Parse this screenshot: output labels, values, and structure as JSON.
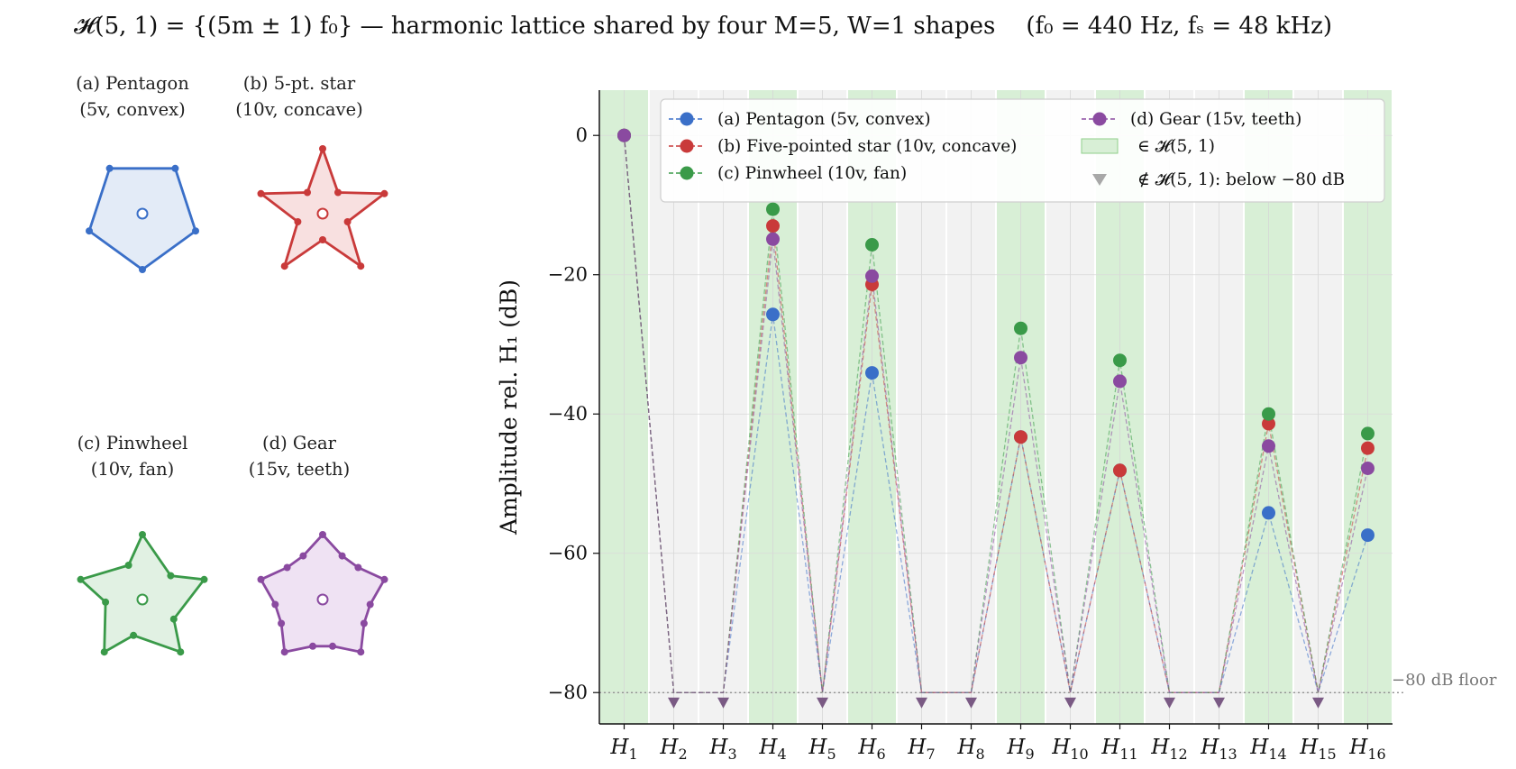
{
  "title": {
    "lhs": "𝓗(5, 1) = {(5m ± 1) f₀}",
    "mid": " — harmonic lattice shared by four M=5, W=1 shapes",
    "rhs": "(f₀ = 440 Hz,  fₛ = 48 kHz)"
  },
  "shapes": [
    {
      "label_line1": "(a) Pentagon",
      "label_line2": "(5v, convex)",
      "color": "#3a6fc8",
      "fill": "#e3ebf7",
      "kind": "pentagon"
    },
    {
      "label_line1": "(b) 5-pt. star",
      "label_line2": "(10v, concave)",
      "color": "#c93a3a",
      "fill": "#f8e0e0",
      "kind": "star"
    },
    {
      "label_line1": "(c) Pinwheel",
      "label_line2": "(10v, fan)",
      "color": "#3a9a49",
      "fill": "#e1f1e3",
      "kind": "pinwheel"
    },
    {
      "label_line1": "(d) Gear",
      "label_line2": "(15v, teeth)",
      "color": "#8a4aa0",
      "fill": "#efe2f3",
      "kind": "gear"
    }
  ],
  "chart_data": {
    "type": "scatter",
    "xlabel": "",
    "ylabel": "Amplitude rel. H₁  (dB)",
    "categories": [
      "H1",
      "H2",
      "H3",
      "H4",
      "H5",
      "H6",
      "H7",
      "H8",
      "H9",
      "H10",
      "H11",
      "H12",
      "H13",
      "H14",
      "H15",
      "H16"
    ],
    "category_subscripts": [
      "1",
      "2",
      "3",
      "4",
      "5",
      "6",
      "7",
      "8",
      "9",
      "10",
      "11",
      "12",
      "13",
      "14",
      "15",
      "16"
    ],
    "ylim": [
      -84.5,
      6.5
    ],
    "yticks": [
      0,
      -20,
      -40,
      -60,
      -80
    ],
    "ytick_labels": [
      "0",
      "−20",
      "−40",
      "−60",
      "−80"
    ],
    "floor_db": -80,
    "floor_label": "−80 dB floor",
    "in_lattice": [
      1,
      0,
      0,
      1,
      0,
      1,
      0,
      0,
      1,
      0,
      1,
      0,
      0,
      1,
      0,
      1
    ],
    "below_floor_marker_db": -81.5,
    "series": [
      {
        "name": "(a) Pentagon (5v, convex)",
        "color": "#3a6fc8",
        "values": [
          0,
          -80,
          -80,
          -25.7,
          -80,
          -34.1,
          -80,
          -80,
          -43.3,
          -80,
          -48.1,
          -80,
          -80,
          -54.2,
          -80,
          -57.4
        ]
      },
      {
        "name": "(b) Five-pointed star (10v, concave)",
        "color": "#c93a3a",
        "values": [
          0,
          -80,
          -80,
          -13.0,
          -80,
          -21.4,
          -80,
          -80,
          -43.3,
          -80,
          -48.1,
          -80,
          -80,
          -41.4,
          -80,
          -44.9
        ]
      },
      {
        "name": "(c) Pinwheel (10v, fan)",
        "color": "#3a9a49",
        "values": [
          0,
          -80,
          -80,
          -10.6,
          -80,
          -15.7,
          -80,
          -80,
          -27.7,
          -80,
          -32.3,
          -80,
          -80,
          -40.0,
          -80,
          -42.8
        ]
      },
      {
        "name": "(d) Gear (15v, teeth)",
        "color": "#8a4aa0",
        "values": [
          0,
          -80,
          -80,
          -14.9,
          -80,
          -20.2,
          -80,
          -80,
          -31.9,
          -80,
          -35.3,
          -80,
          -80,
          -44.6,
          -80,
          -47.8
        ]
      }
    ],
    "legend": {
      "placement": "top",
      "lattice_label": "∈ 𝓗(5, 1)",
      "below_label": "∉ 𝓗(5, 1): below −80 dB"
    },
    "grid": true
  }
}
